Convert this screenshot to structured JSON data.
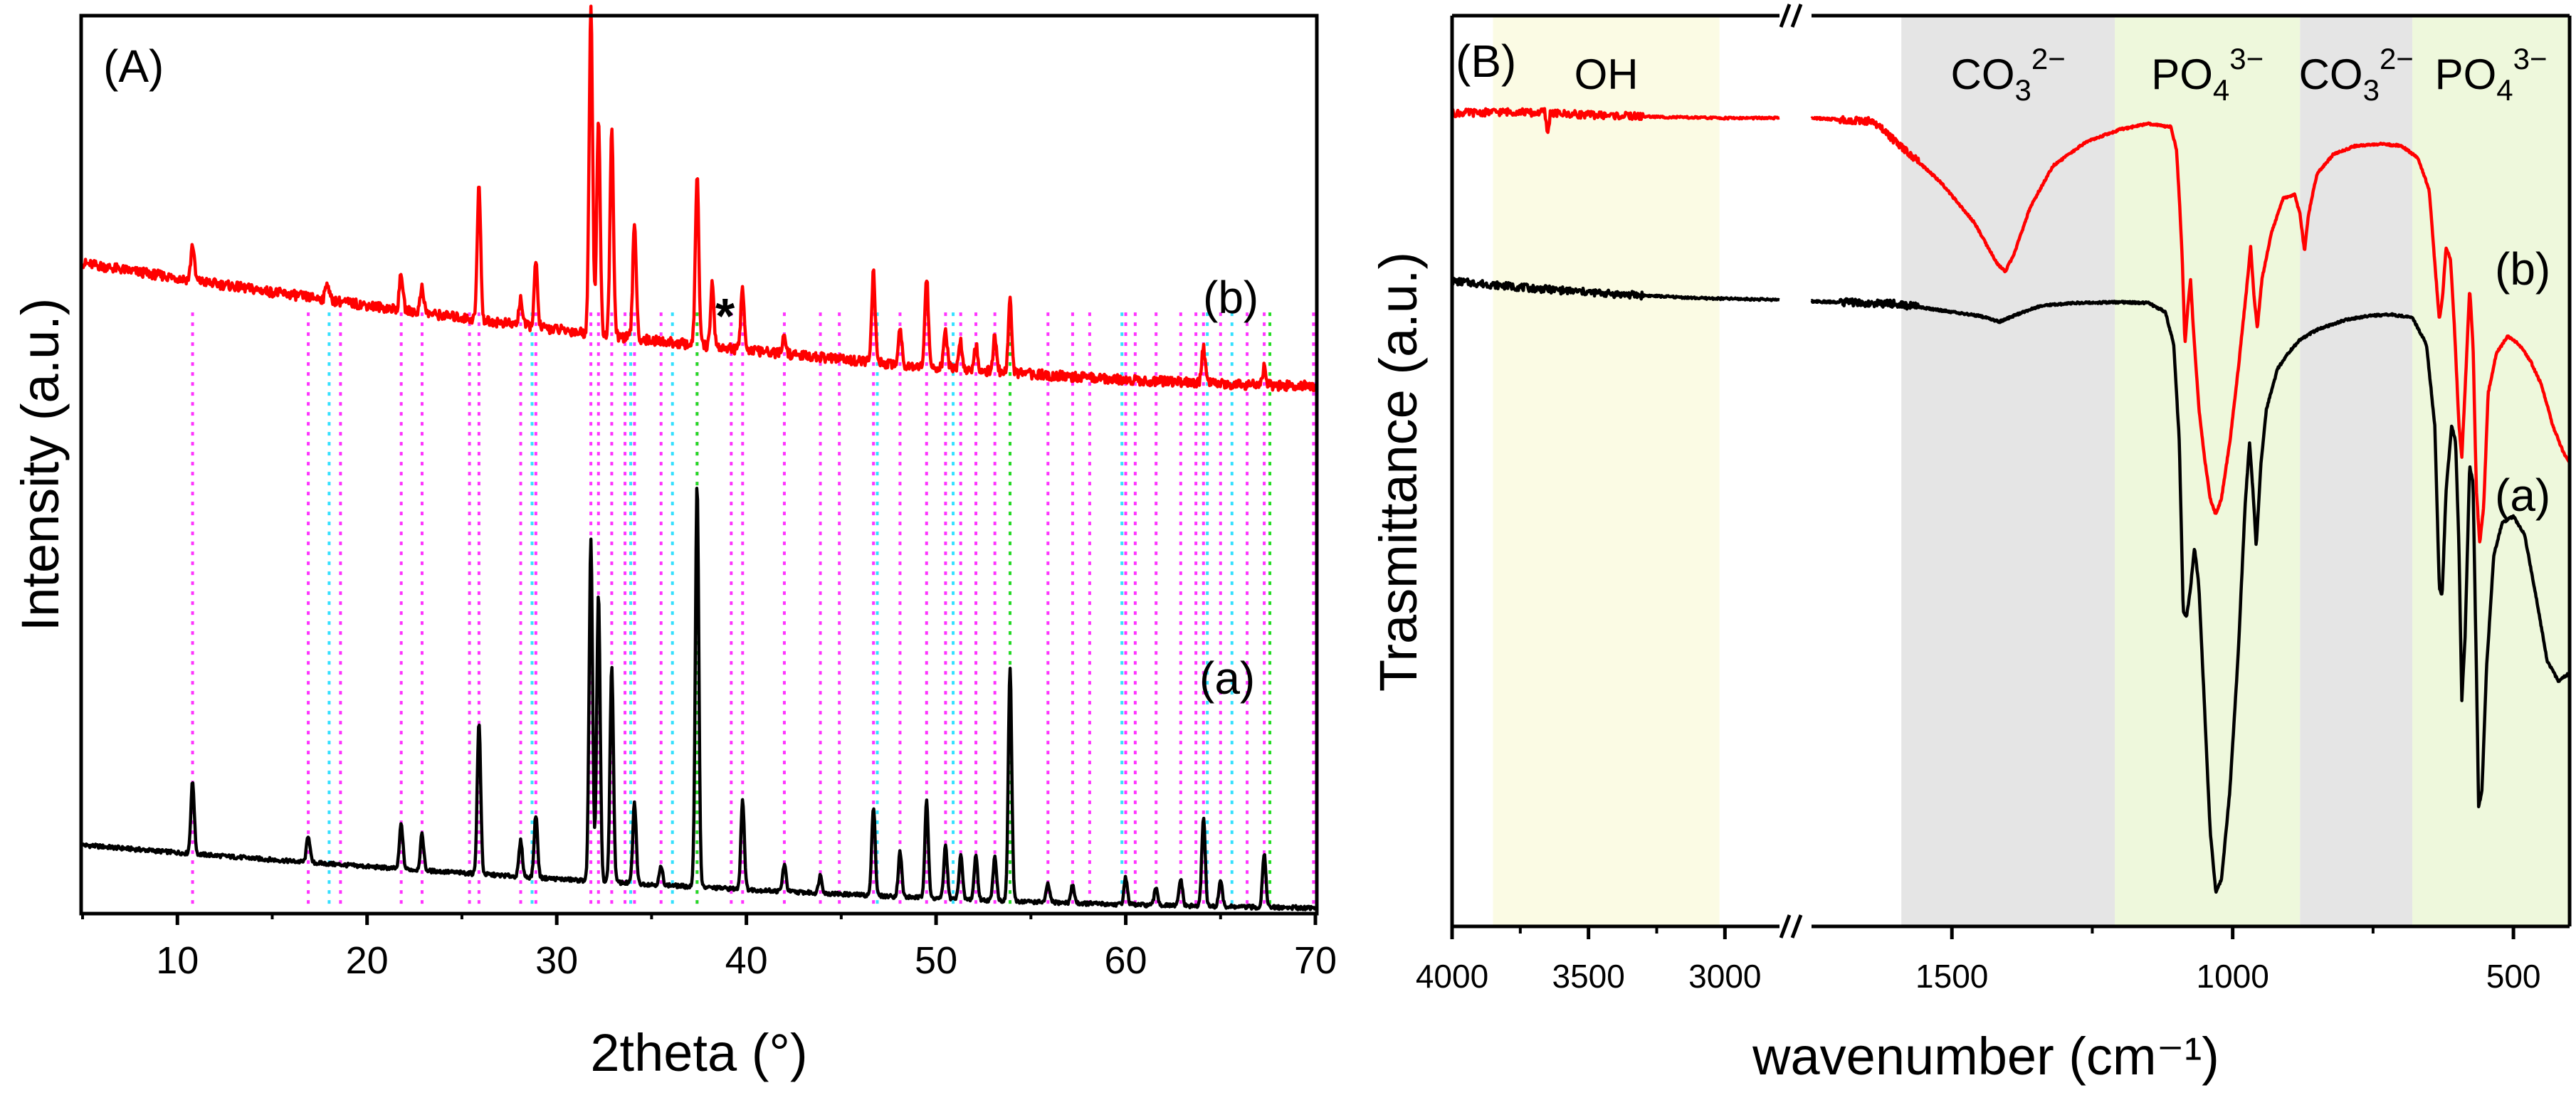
{
  "chart_data": [
    {
      "panel": "(A)",
      "type": "line",
      "xlabel": "2theta (°)",
      "ylabel": "Intensity (a.u.)",
      "xlim": [
        5,
        70
      ],
      "xticks": [
        10,
        20,
        30,
        40,
        50,
        60,
        70
      ],
      "ylim": [
        0,
        100
      ],
      "series": [
        {
          "name": "(a)",
          "color": "#000000",
          "baseline_start": 7.5,
          "baseline_end": 0.5,
          "peaks": [
            [
              10.8,
              8
            ],
            [
              16.9,
              3
            ],
            [
              21.8,
              5
            ],
            [
              22.9,
              4
            ],
            [
              25.9,
              17
            ],
            [
              28.1,
              4
            ],
            [
              28.9,
              7
            ],
            [
              31.8,
              38
            ],
            [
              32.2,
              32
            ],
            [
              32.9,
              24
            ],
            [
              34.1,
              9
            ],
            [
              35.5,
              2
            ],
            [
              37.4,
              45
            ],
            [
              39.8,
              10
            ],
            [
              42.0,
              3
            ],
            [
              43.9,
              2
            ],
            [
              46.7,
              10
            ],
            [
              48.1,
              5
            ],
            [
              49.5,
              11
            ],
            [
              50.5,
              6
            ],
            [
              51.3,
              5
            ],
            [
              52.1,
              5
            ],
            [
              53.1,
              5
            ],
            [
              53.9,
              26
            ],
            [
              55.9,
              2
            ],
            [
              57.2,
              2
            ],
            [
              60.0,
              3
            ],
            [
              61.6,
              2
            ],
            [
              62.9,
              3
            ],
            [
              64.1,
              10
            ],
            [
              65.0,
              3
            ],
            [
              67.3,
              6
            ]
          ]
        },
        {
          "name": "(b)",
          "color": "#ff0000",
          "baseline_start": 72.5,
          "baseline_end": 58.8,
          "peaks": [
            [
              10.8,
              4
            ],
            [
              17.9,
              2
            ],
            [
              21.8,
              4
            ],
            [
              22.9,
              3
            ],
            [
              25.9,
              15
            ],
            [
              28.1,
              3
            ],
            [
              28.9,
              7
            ],
            [
              31.8,
              37
            ],
            [
              32.2,
              24
            ],
            [
              32.9,
              23
            ],
            [
              34.1,
              13
            ],
            [
              37.4,
              19
            ],
            [
              38.2,
              7
            ],
            [
              39.8,
              7
            ],
            [
              42.0,
              2
            ],
            [
              46.7,
              10
            ],
            [
              48.1,
              4
            ],
            [
              49.5,
              10
            ],
            [
              50.5,
              4
            ],
            [
              51.3,
              3
            ],
            [
              52.1,
              3
            ],
            [
              53.1,
              4
            ],
            [
              53.9,
              8
            ],
            [
              64.1,
              4
            ],
            [
              67.3,
              2
            ]
          ]
        }
      ],
      "reference_lines": [
        {
          "color": "#ff33ff",
          "positions": [
            10.8,
            16.9,
            18.6,
            21.8,
            22.9,
            25.4,
            25.9,
            28.1,
            28.9,
            31.8,
            32.2,
            32.9,
            33.6,
            34.1,
            35.5,
            37.4,
            39.2,
            39.8,
            42.0,
            43.9,
            44.9,
            46.7,
            48.1,
            49.5,
            50.5,
            51.3,
            52.1,
            53.1,
            53.9,
            55.9,
            57.2,
            58.1,
            60.0,
            60.5,
            61.6,
            62.9,
            63.7,
            64.1,
            65.0,
            66.4,
            67.3,
            69.9
          ]
        },
        {
          "color": "#33e0ff",
          "positions": [
            18.0,
            28.7,
            33.9,
            36.1,
            46.9,
            50.9,
            59.8,
            64.3,
            65.6
          ]
        },
        {
          "color": "#22dd22",
          "positions": [
            37.4,
            53.9,
            67.6
          ]
        }
      ],
      "annotations": [
        {
          "text": "(A)"
        },
        {
          "text": "(b)"
        },
        {
          "text": "(a)"
        },
        {
          "text": "*",
          "x": 38.2
        }
      ]
    },
    {
      "panel": "(B)",
      "type": "line",
      "xlabel": "wavenumber (cm⁻¹)",
      "ylabel": "Trasmittance (a.u.)",
      "x_axis_break": [
        2800,
        1750
      ],
      "segment_left_xlim": [
        4000,
        2800
      ],
      "segment_right_xlim": [
        1750,
        400
      ],
      "xticks": [
        4000,
        3500,
        3000,
        1500,
        1000,
        500
      ],
      "ylim": [
        0,
        100
      ],
      "bands": [
        {
          "label": "OH",
          "range": [
            3850,
            3020
          ],
          "color": "#fbfbe4"
        },
        {
          "label_main": "CO",
          "label_sub": "3",
          "label_sup": "2−",
          "range": [
            1590,
            1210
          ],
          "color": "#e5e5e5"
        },
        {
          "label_main": "PO",
          "label_sub": "4",
          "label_sup": "3−",
          "range": [
            1210,
            880
          ],
          "color": "#eef8dc"
        },
        {
          "label_main": "CO",
          "label_sub": "3",
          "label_sup": "2−",
          "range": [
            880,
            680
          ],
          "color": "#e5e5e5"
        },
        {
          "label_main": "PO",
          "label_sub": "4",
          "label_sup": "3−",
          "range": [
            680,
            400
          ],
          "color": "#eef8dc"
        }
      ],
      "series": [
        {
          "name": "(a)",
          "color": "#000000",
          "points": [
            [
              4000,
              77.8
            ],
            [
              3700,
              76.9
            ],
            [
              3400,
              76.2
            ],
            [
              3100,
              75.7
            ],
            [
              2800,
              75.5
            ],
            [
              1750,
              75.3
            ],
            [
              1600,
              75.0
            ],
            [
              1450,
              73.5
            ],
            [
              1415,
              72.8
            ],
            [
              1380,
              73.8
            ],
            [
              1340,
              74.8
            ],
            [
              1280,
              75.1
            ],
            [
              1200,
              75.2
            ],
            [
              1150,
              75.1
            ],
            [
              1120,
              74.0
            ],
            [
              1105,
              70.0
            ],
            [
              1095,
              58.0
            ],
            [
              1088,
              37.0
            ],
            [
              1082,
              36.5
            ],
            [
              1075,
              40.0
            ],
            [
              1068,
              45.0
            ],
            [
              1060,
              40.0
            ],
            [
              1050,
              25.0
            ],
            [
              1040,
              10.0
            ],
            [
              1030,
              2.5
            ],
            [
              1020,
              4.0
            ],
            [
              1005,
              15.0
            ],
            [
              990,
              32.0
            ],
            [
              978,
              50.0
            ],
            [
              970,
              58.0
            ],
            [
              963,
              51.0
            ],
            [
              958,
              45.0
            ],
            [
              950,
              55.0
            ],
            [
              940,
              62.0
            ],
            [
              920,
              67.0
            ],
            [
              900,
              69.0
            ],
            [
              880,
              70.6
            ],
            [
              850,
              71.8
            ],
            [
              800,
              73.0
            ],
            [
              760,
              73.5
            ],
            [
              720,
              73.7
            ],
            [
              680,
              73.3
            ],
            [
              655,
              70.0
            ],
            [
              640,
              60.0
            ],
            [
              632,
              40.0
            ],
            [
              627,
              39.0
            ],
            [
              620,
              52.0
            ],
            [
              610,
              60.0
            ],
            [
              603,
              58.0
            ],
            [
              597,
              45.0
            ],
            [
              592,
              26.0
            ],
            [
              586,
              34.0
            ],
            [
              578,
              55.0
            ],
            [
              572,
              53.0
            ],
            [
              566,
              30.0
            ],
            [
              562,
              13.0
            ],
            [
              556,
              15.0
            ],
            [
              548,
              30.0
            ],
            [
              535,
              44.0
            ],
            [
              520,
              48.0
            ],
            [
              500,
              48.8
            ],
            [
              480,
              46.5
            ],
            [
              460,
              39.0
            ],
            [
              440,
              31.0
            ],
            [
              420,
              28.5
            ],
            [
              400,
              29.5
            ]
          ]
        },
        {
          "name": "(b)",
          "color": "#ff0000",
          "points": [
            [
              4000,
              98.5
            ],
            [
              3750,
              98.7
            ],
            [
              3700,
              98.5
            ],
            [
              3660,
              98.7
            ],
            [
              3650,
              95.7
            ],
            [
              3640,
              98.5
            ],
            [
              3500,
              98.3
            ],
            [
              3200,
              98.0
            ],
            [
              3000,
              97.9
            ],
            [
              2800,
              97.9
            ],
            [
              1750,
              97.9
            ],
            [
              1640,
              97.5
            ],
            [
              1600,
              95.0
            ],
            [
              1520,
              90.0
            ],
            [
              1460,
              85.0
            ],
            [
              1420,
              80.0
            ],
            [
              1405,
              79.0
            ],
            [
              1390,
              81.0
            ],
            [
              1360,
              87.0
            ],
            [
              1320,
              92.0
            ],
            [
              1260,
              95.0
            ],
            [
              1200,
              96.5
            ],
            [
              1150,
              97.2
            ],
            [
              1110,
              96.8
            ],
            [
              1100,
              94.0
            ],
            [
              1095,
              88.0
            ],
            [
              1090,
              81.0
            ],
            [
              1085,
              70.0
            ],
            [
              1080,
              74.5
            ],
            [
              1075,
              78.0
            ],
            [
              1070,
              72.0
            ],
            [
              1060,
              62.0
            ],
            [
              1050,
              56.0
            ],
            [
              1040,
              51.0
            ],
            [
              1030,
              49.0
            ],
            [
              1020,
              51.0
            ],
            [
              1005,
              58.0
            ],
            [
              990,
              67.0
            ],
            [
              975,
              77.0
            ],
            [
              968,
              82.0
            ],
            [
              962,
              76.0
            ],
            [
              956,
              72.0
            ],
            [
              948,
              78.0
            ],
            [
              930,
              84.0
            ],
            [
              910,
              88.0
            ],
            [
              890,
              88.5
            ],
            [
              880,
              86.0
            ],
            [
              872,
              81.5
            ],
            [
              865,
              86.0
            ],
            [
              850,
              91.0
            ],
            [
              820,
              93.5
            ],
            [
              780,
              94.5
            ],
            [
              740,
              94.7
            ],
            [
              700,
              94.5
            ],
            [
              670,
              93.0
            ],
            [
              650,
              89.0
            ],
            [
              640,
              80.0
            ],
            [
              632,
              73.0
            ],
            [
              626,
              76.0
            ],
            [
              620,
              82.0
            ],
            [
              612,
              80.5
            ],
            [
              605,
              72.0
            ],
            [
              597,
              60.0
            ],
            [
              592,
              56.0
            ],
            [
              585,
              66.0
            ],
            [
              578,
              77.0
            ],
            [
              572,
              70.0
            ],
            [
              566,
              52.0
            ],
            [
              560,
              45.5
            ],
            [
              553,
              50.0
            ],
            [
              545,
              64.0
            ],
            [
              530,
              69.0
            ],
            [
              510,
              71.0
            ],
            [
              490,
              70.0
            ],
            [
              470,
              68.0
            ],
            [
              450,
              65.0
            ],
            [
              430,
              60.0
            ],
            [
              410,
              56.5
            ],
            [
              400,
              55.5
            ]
          ]
        }
      ],
      "annotations": [
        {
          "text": "(B)"
        },
        {
          "text": "(b)"
        },
        {
          "text": "(a)"
        }
      ]
    }
  ]
}
